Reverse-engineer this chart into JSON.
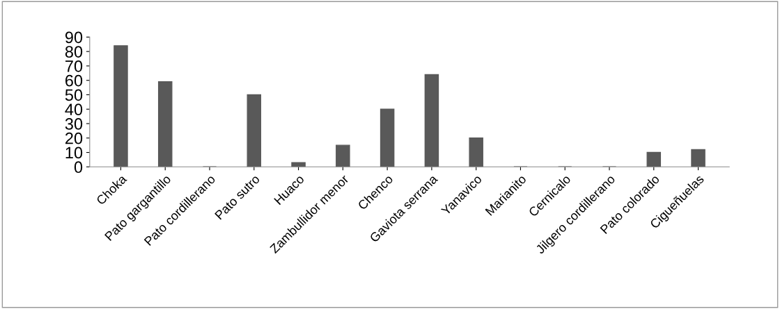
{
  "chart_data": {
    "type": "bar",
    "categories": [
      "Choka",
      "Pato gargantillo",
      "Pato cordillerano",
      "Pato sutro",
      "Huaco",
      "Zambullidor menor",
      "Chenco",
      "Gaviota serrana",
      "Yanavico",
      "Marianito",
      "Cernicalo",
      "Jilgero cordillerano",
      "Pato colorado",
      "Cigueñuelas"
    ],
    "values": [
      84,
      59,
      0,
      50,
      3,
      15,
      40,
      64,
      20,
      0,
      0,
      0,
      10,
      12
    ],
    "color": "#595959",
    "ylim": [
      0,
      90
    ],
    "yticks": [
      0,
      10,
      20,
      30,
      40,
      50,
      60,
      70,
      80,
      90
    ],
    "grid": false,
    "legend": false
  }
}
